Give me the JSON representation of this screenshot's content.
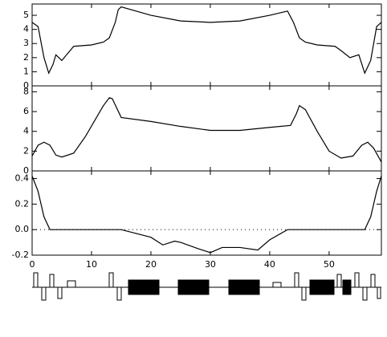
{
  "chart_data": [
    {
      "type": "line",
      "color": "#000000",
      "xlim": [
        0,
        58.8
      ],
      "ylim": [
        0,
        5.8
      ],
      "yticks": [
        0,
        1,
        2,
        3,
        4,
        5
      ],
      "x": [
        0,
        1,
        2,
        2.8,
        3.5,
        4,
        5,
        6,
        7,
        10,
        12,
        13,
        14,
        14.5,
        15,
        20,
        25,
        30,
        35,
        40,
        43,
        44,
        45,
        46,
        48,
        51,
        52,
        53.5,
        55,
        56,
        57,
        58,
        58.8
      ],
      "values": [
        4.5,
        4.2,
        2,
        0.9,
        1.5,
        2.2,
        1.8,
        2.3,
        2.8,
        2.9,
        3.1,
        3.4,
        4.5,
        5.4,
        5.6,
        5.0,
        4.6,
        4.5,
        4.6,
        5.0,
        5.3,
        4.5,
        3.4,
        3.1,
        2.9,
        2.8,
        2.5,
        2.0,
        2.2,
        0.9,
        1.8,
        4.2,
        4.5
      ]
    },
    {
      "type": "line",
      "color": "#000000",
      "xlim": [
        0,
        58.8
      ],
      "ylim": [
        0,
        8.6
      ],
      "yticks": [
        0,
        2,
        4,
        6,
        8
      ],
      "x": [
        0,
        1,
        2,
        3,
        4,
        5,
        7,
        9,
        12,
        13,
        13.5,
        15,
        20,
        25,
        30,
        35,
        40,
        43.5,
        44.5,
        45,
        46,
        48,
        50,
        52,
        54,
        55.5,
        56.5,
        57.5,
        58.8
      ],
      "values": [
        1.5,
        2.6,
        2.9,
        2.6,
        1.6,
        1.4,
        1.8,
        3.5,
        6.6,
        7.4,
        7.3,
        5.4,
        5.0,
        4.5,
        4.1,
        4.1,
        4.4,
        4.6,
        5.8,
        6.6,
        6.2,
        4.0,
        2.0,
        1.3,
        1.5,
        2.6,
        2.9,
        2.3,
        0.9
      ]
    },
    {
      "type": "line",
      "color": "#000000",
      "xlim": [
        0,
        58.8
      ],
      "ylim": [
        -0.2,
        0.46
      ],
      "yticks": [
        -0.2,
        {
          "value": 0,
          "label": "0.0"
        },
        0.2,
        0.4
      ],
      "xticks": [
        0,
        10,
        20,
        30,
        40,
        50
      ],
      "x": [
        0,
        1,
        2,
        3,
        15,
        20,
        22,
        24,
        25,
        28,
        30,
        32,
        35,
        38,
        40,
        43,
        56,
        57,
        58,
        58.8
      ],
      "values": [
        0.42,
        0.3,
        0.1,
        0,
        0,
        -0.06,
        -0.12,
        -0.09,
        -0.1,
        -0.15,
        -0.18,
        -0.14,
        -0.14,
        -0.16,
        -0.08,
        0,
        0,
        0.1,
        0.3,
        0.42
      ]
    }
  ]
}
